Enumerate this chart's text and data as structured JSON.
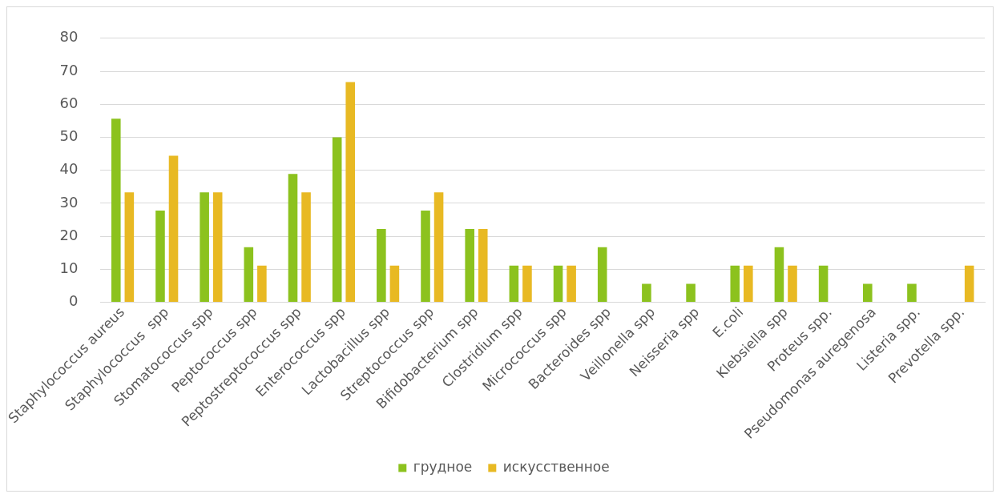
{
  "chart_data": {
    "type": "bar",
    "categories": [
      "Staphylococcus aureus",
      "Staphylococcus  spp",
      "Stomatococcus spp",
      "Peptococcus spp",
      "Peptostreptococcus spp",
      "Enterococcus spp",
      "Lactobacillus spp",
      "Streptococcus spp",
      "Bifidobacterium spp",
      "Clostridium spp",
      "Micrococcus spp",
      "Bacteroides spp",
      "Veillonella spp",
      "Neisseria spp",
      "E.coli",
      "Klebsiella spp",
      "Proteus spp.",
      "Pseudomonas auregenosa",
      "Listeria spp.",
      "Prevotella spp."
    ],
    "series": [
      {
        "name": "грудное",
        "color": "#8cc21e",
        "values": [
          55.6,
          27.8,
          33.3,
          16.7,
          38.9,
          50,
          22.2,
          27.8,
          22.2,
          11.1,
          11.1,
          16.7,
          5.6,
          5.6,
          11.1,
          16.7,
          11.1,
          5.6,
          5.6,
          0
        ]
      },
      {
        "name": "искусственное",
        "color": "#e8b923",
        "values": [
          33.3,
          44.4,
          33.3,
          11.1,
          33.3,
          66.7,
          11.1,
          33.3,
          22.2,
          11.1,
          11.1,
          0,
          0,
          0,
          11.1,
          11.1,
          0,
          0,
          0,
          11.1
        ]
      }
    ],
    "ylim": [
      0,
      80
    ],
    "yticks": [
      0,
      10,
      20,
      30,
      40,
      50,
      60,
      70,
      80
    ],
    "grid": "y",
    "legend": "bottom"
  }
}
